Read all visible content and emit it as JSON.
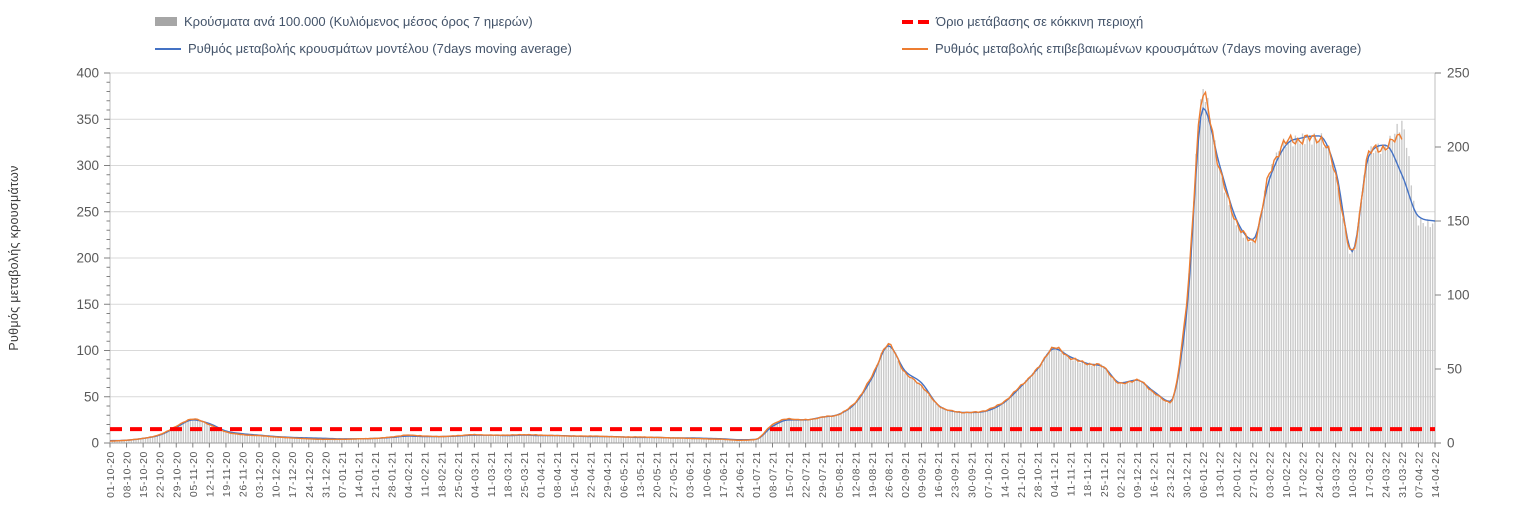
{
  "legend": {
    "bars_label": "Κρούσματα ανά 100.000 (Κυλιόμενος μέσος όρος 7 ημερών)",
    "model_label": "Ρυθμός μεταβολής κρουσμάτων μοντέλου (7days moving average)",
    "threshold_label": "Όριο μετάβασης σε κόκκινη περιοχή",
    "confirmed_label": "Ρυθμός μεταβολής επιβεβαιωμένων κρουσμάτων (7days moving average)"
  },
  "y_axis_title": "Ρυθμός μεταβολής κρουσμάτων",
  "colors": {
    "bars": "#c9c9c9",
    "legend_bar_swatch": "#a6a6a6",
    "model_line": "#4472c4",
    "confirmed_line": "#ed7d31",
    "threshold": "#ff0000",
    "grid": "#d9d9d9",
    "axis_line": "#bfbfbf",
    "bottom_axis_line": "#9a9a9a",
    "axis_text": "#595959",
    "legend_text": "#44546a"
  },
  "chart_data": {
    "type": "bar",
    "subtype": "combo-bars-plus-two-lines-plus-threshold",
    "title": "",
    "xlabel": "",
    "ylabel_left": "Ρυθμός μεταβολής κρουσμάτων",
    "left_axis": {
      "min": 0,
      "max": 400,
      "major_step": 50,
      "minor_step": 10,
      "ticks": [
        0,
        50,
        100,
        150,
        200,
        250,
        300,
        350,
        400
      ]
    },
    "right_axis": {
      "min": 0,
      "max": 250,
      "major_step": 50,
      "ticks": [
        0,
        50,
        100,
        150,
        200,
        250
      ]
    },
    "grid": "horizontal-left-axis-major",
    "legend_position": "top-two-columns",
    "sampling_note": "weekly anchor values read from the daily chart; intermediate days are interpolated",
    "categories": [
      "01-10-20",
      "08-10-20",
      "15-10-20",
      "22-10-20",
      "29-10-20",
      "05-11-20",
      "12-11-20",
      "19-11-20",
      "26-11-20",
      "03-12-20",
      "10-12-20",
      "17-12-20",
      "24-12-20",
      "31-12-20",
      "07-01-21",
      "14-01-21",
      "21-01-21",
      "28-01-21",
      "04-02-21",
      "11-02-21",
      "18-02-21",
      "25-02-21",
      "04-03-21",
      "11-03-21",
      "18-03-21",
      "25-03-21",
      "01-04-21",
      "08-04-21",
      "15-04-21",
      "22-04-21",
      "29-04-21",
      "06-05-21",
      "13-05-21",
      "20-05-21",
      "27-05-21",
      "03-06-21",
      "10-06-21",
      "17-06-21",
      "24-06-21",
      "01-07-21",
      "08-07-21",
      "15-07-21",
      "22-07-21",
      "29-07-21",
      "05-08-21",
      "12-08-21",
      "19-08-21",
      "26-08-21",
      "02-09-21",
      "09-09-21",
      "16-09-21",
      "23-09-21",
      "30-09-21",
      "07-10-21",
      "14-10-21",
      "21-10-21",
      "28-10-21",
      "04-11-21",
      "11-11-21",
      "18-11-21",
      "25-11-21",
      "02-12-21",
      "09-12-21",
      "16-12-21",
      "23-12-21",
      "30-12-21",
      "06-01-22",
      "13-01-22",
      "20-01-22",
      "27-01-22",
      "03-02-22",
      "10-02-22",
      "17-02-22",
      "24-02-22",
      "03-03-22",
      "10-03-22",
      "17-03-22",
      "24-03-22",
      "31-03-22",
      "07-04-22",
      "14-04-22"
    ],
    "series": [
      {
        "name": "Κρούσματα ανά 100.000 (Κυλιόμενος μέσος όρος 7 ημερών)",
        "type": "bar",
        "axis": "right",
        "color": "#c9c9c9",
        "values": [
          1.3,
          1.9,
          3.1,
          5.6,
          11.3,
          16.3,
          12.5,
          7.5,
          5.6,
          5,
          4.1,
          3.4,
          2.8,
          2.5,
          2.5,
          2.8,
          3.1,
          4.1,
          5.3,
          4.7,
          4.4,
          5,
          5.6,
          5.3,
          5.3,
          5.6,
          5.3,
          5,
          4.7,
          4.7,
          4.4,
          4.1,
          4.1,
          3.8,
          3.4,
          3.1,
          2.8,
          2.5,
          1.9,
          2.5,
          12.5,
          16.3,
          15.6,
          17.5,
          19.4,
          27.5,
          45,
          66.3,
          47.5,
          38.8,
          25.6,
          21.3,
          20.6,
          22.5,
          28.1,
          38.8,
          50,
          64.4,
          57.5,
          53.8,
          51.3,
          40,
          42.5,
          34.4,
          27.5,
          93.8,
          237,
          184,
          150,
          136,
          181,
          203,
          205,
          206,
          181,
          128,
          195,
          200,
          215,
          150,
          148
        ]
      },
      {
        "name": "Ρυθμός μεταβολής κρουσμάτων μοντέλου (7days moving average)",
        "type": "line",
        "axis": "left",
        "color": "#4472c4",
        "values": [
          2.5,
          3,
          5,
          8.5,
          17,
          25,
          21,
          13,
          10,
          8.5,
          7,
          6,
          5.5,
          5,
          4.5,
          4.5,
          5,
          6,
          7.5,
          7,
          7,
          7.5,
          8.5,
          8.5,
          8,
          8.5,
          8,
          8,
          7.5,
          7,
          7,
          6.5,
          6,
          6,
          5.5,
          5.5,
          5,
          4.5,
          3.5,
          4,
          18,
          25,
          25,
          28,
          31,
          43,
          70,
          105,
          78,
          65,
          41,
          34,
          33,
          35,
          44,
          61,
          80,
          102,
          93,
          86,
          82,
          65,
          68,
          56,
          45,
          140,
          362,
          300,
          242,
          220,
          285,
          322,
          330,
          332,
          295,
          207,
          310,
          322,
          290,
          245,
          240
        ]
      },
      {
        "name": "Ρυθμός μεταβολής επιβεβαιωμένων κρουσμάτων (7days moving average)",
        "type": "line",
        "axis": "left",
        "color": "#ed7d31",
        "values": [
          2,
          3,
          5,
          9,
          18,
          26,
          20,
          12,
          9,
          8,
          6.5,
          5.5,
          4.5,
          4,
          4,
          4.5,
          5,
          6.5,
          8.5,
          7.5,
          7,
          8,
          9,
          8.5,
          8.5,
          9,
          8.5,
          8,
          7.5,
          7.5,
          7,
          6.5,
          6.5,
          6,
          5.5,
          5,
          4.5,
          4,
          3,
          4,
          20,
          26,
          25,
          28,
          31,
          44,
          72,
          106,
          76,
          62,
          41,
          34,
          33,
          36,
          45,
          62,
          80,
          103,
          92,
          86,
          82,
          64,
          68,
          55,
          44,
          150,
          375,
          295,
          240,
          218,
          290,
          325,
          328,
          330,
          290,
          205,
          312,
          320,
          335,
          null,
          null
        ]
      },
      {
        "name": "Όριο μετάβασης σε κόκκινη περιοχή",
        "type": "threshold-line",
        "axis": "left",
        "color": "#ff0000",
        "value": 15
      }
    ]
  }
}
